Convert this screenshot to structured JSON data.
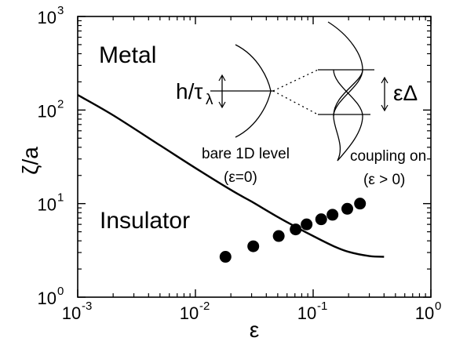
{
  "chart_data": {
    "type": "scatter",
    "x_scale": "log",
    "y_scale": "log",
    "xlim": [
      0.001,
      1
    ],
    "ylim": [
      1,
      1000
    ],
    "xlabel": "ε",
    "ylabel": "ζ/a",
    "x_ticks": [
      {
        "base": "10",
        "exp": "-3",
        "value": 0.001
      },
      {
        "base": "10",
        "exp": "-2",
        "value": 0.01
      },
      {
        "base": "10",
        "exp": "-1",
        "value": 0.1
      },
      {
        "base": "10",
        "exp": "0",
        "value": 1
      }
    ],
    "y_ticks": [
      {
        "base": "10",
        "exp": "0",
        "value": 1
      },
      {
        "base": "10",
        "exp": "1",
        "value": 10
      },
      {
        "base": "10",
        "exp": "2",
        "value": 100
      },
      {
        "base": "10",
        "exp": "3",
        "value": 1000
      }
    ],
    "grid": false,
    "points": [
      {
        "x": 0.018,
        "y": 2.7
      },
      {
        "x": 0.031,
        "y": 3.5
      },
      {
        "x": 0.051,
        "y": 4.5
      },
      {
        "x": 0.071,
        "y": 5.3
      },
      {
        "x": 0.088,
        "y": 6.0
      },
      {
        "x": 0.117,
        "y": 6.8
      },
      {
        "x": 0.146,
        "y": 7.6
      },
      {
        "x": 0.195,
        "y": 8.8
      },
      {
        "x": 0.25,
        "y": 10.0
      }
    ],
    "boundary_curve": [
      {
        "x": 0.001,
        "y": 145
      },
      {
        "x": 0.002,
        "y": 88
      },
      {
        "x": 0.005,
        "y": 42
      },
      {
        "x": 0.01,
        "y": 24
      },
      {
        "x": 0.02,
        "y": 14
      },
      {
        "x": 0.03,
        "y": 10.5
      },
      {
        "x": 0.05,
        "y": 7.2
      },
      {
        "x": 0.07,
        "y": 5.7
      },
      {
        "x": 0.1,
        "y": 4.5
      },
      {
        "x": 0.15,
        "y": 3.5
      },
      {
        "x": 0.2,
        "y": 3.05
      },
      {
        "x": 0.3,
        "y": 2.75
      },
      {
        "x": 0.4,
        "y": 2.7
      }
    ],
    "annotations": {
      "metal": "Metal",
      "insulator": "Insulator",
      "h_over_tau": "h/τ",
      "lambda_sub": "λ",
      "epsilon_delta": "εΔ",
      "bare_level_line1": "bare 1D level",
      "bare_level_line2": "(ε=0)",
      "coupling_line1": "coupling on",
      "coupling_line2": "(ε > 0)"
    }
  }
}
